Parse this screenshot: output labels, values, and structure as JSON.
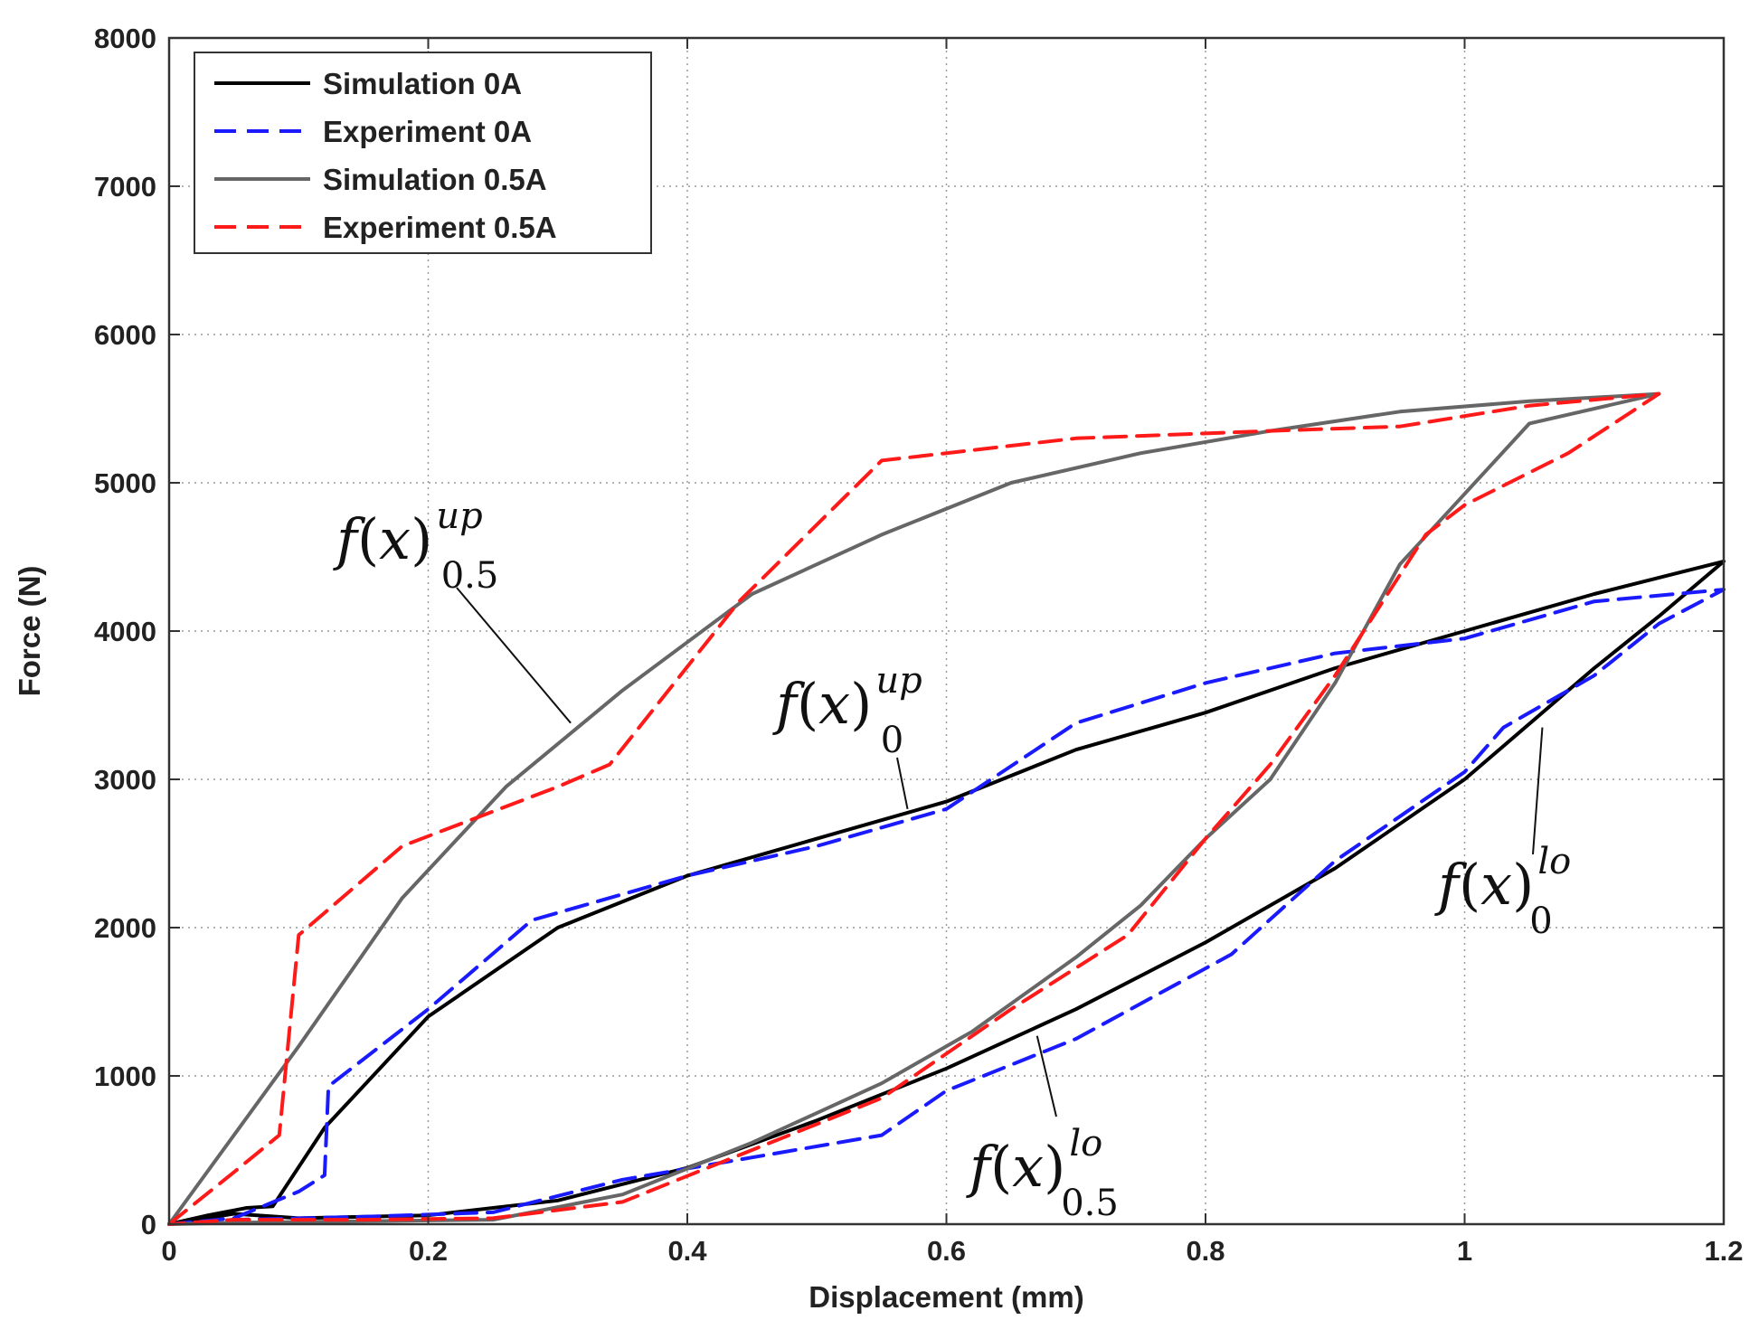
{
  "chart_data": {
    "type": "line",
    "title": "",
    "xlabel": "Displacement (mm)",
    "ylabel": "Force (N)",
    "xlim": [
      0,
      1.2
    ],
    "ylim": [
      0,
      8000
    ],
    "xticks": [
      0,
      0.2,
      0.4,
      0.6,
      0.8,
      1,
      1.2
    ],
    "xtick_labels": [
      "0",
      "0.2",
      "0.4",
      "0.6",
      "0.8",
      "1",
      "1.2"
    ],
    "yticks": [
      0,
      1000,
      2000,
      3000,
      4000,
      5000,
      6000,
      7000,
      8000
    ],
    "ytick_labels": [
      "0",
      "1000",
      "2000",
      "3000",
      "4000",
      "5000",
      "6000",
      "7000",
      "8000"
    ],
    "grid": true,
    "legend_position": "top-left",
    "series": [
      {
        "name": "Simulation 0A",
        "color": "#000000",
        "dash": "solid",
        "width": 4,
        "points": [
          [
            0,
            0
          ],
          [
            0.03,
            60
          ],
          [
            0.06,
            110
          ],
          [
            0.08,
            120
          ],
          [
            0.12,
            650
          ],
          [
            0.2,
            1400
          ],
          [
            0.3,
            2000
          ],
          [
            0.4,
            2350
          ],
          [
            0.5,
            2600
          ],
          [
            0.6,
            2850
          ],
          [
            0.7,
            3200
          ],
          [
            0.8,
            3450
          ],
          [
            0.9,
            3750
          ],
          [
            1.0,
            4000
          ],
          [
            1.1,
            4250
          ],
          [
            1.2,
            4470
          ],
          [
            1.15,
            4100
          ],
          [
            1.1,
            3750
          ],
          [
            1.0,
            3000
          ],
          [
            0.9,
            2400
          ],
          [
            0.8,
            1900
          ],
          [
            0.7,
            1450
          ],
          [
            0.6,
            1050
          ],
          [
            0.5,
            700
          ],
          [
            0.4,
            380
          ],
          [
            0.3,
            160
          ],
          [
            0.2,
            60
          ],
          [
            0.1,
            40
          ],
          [
            0.05,
            70
          ],
          [
            0,
            0
          ]
        ]
      },
      {
        "name": "Experiment 0A",
        "color": "#1a1aff",
        "dash": "dashed",
        "width": 4,
        "points": [
          [
            0,
            0
          ],
          [
            0.05,
            40
          ],
          [
            0.1,
            220
          ],
          [
            0.12,
            330
          ],
          [
            0.123,
            930
          ],
          [
            0.2,
            1450
          ],
          [
            0.28,
            2050
          ],
          [
            0.4,
            2350
          ],
          [
            0.5,
            2550
          ],
          [
            0.6,
            2800
          ],
          [
            0.7,
            3380
          ],
          [
            0.8,
            3650
          ],
          [
            0.9,
            3850
          ],
          [
            1.0,
            3950
          ],
          [
            1.1,
            4200
          ],
          [
            1.2,
            4280
          ],
          [
            1.15,
            4050
          ],
          [
            1.1,
            3700
          ],
          [
            1.03,
            3350
          ],
          [
            1.0,
            3050
          ],
          [
            0.9,
            2450
          ],
          [
            0.82,
            1820
          ],
          [
            0.7,
            1250
          ],
          [
            0.6,
            900
          ],
          [
            0.55,
            600
          ],
          [
            0.45,
            450
          ],
          [
            0.35,
            300
          ],
          [
            0.25,
            80
          ],
          [
            0.15,
            50
          ],
          [
            0.05,
            30
          ],
          [
            0,
            0
          ]
        ]
      },
      {
        "name": "Simulation 0.5A",
        "color": "#666666",
        "dash": "solid",
        "width": 4,
        "points": [
          [
            0,
            0
          ],
          [
            0.1,
            1200
          ],
          [
            0.18,
            2200
          ],
          [
            0.26,
            2950
          ],
          [
            0.35,
            3600
          ],
          [
            0.45,
            4250
          ],
          [
            0.55,
            4650
          ],
          [
            0.65,
            5000
          ],
          [
            0.75,
            5200
          ],
          [
            0.85,
            5350
          ],
          [
            0.95,
            5480
          ],
          [
            1.05,
            5550
          ],
          [
            1.15,
            5600
          ],
          [
            1.05,
            5400
          ],
          [
            0.95,
            4450
          ],
          [
            0.9,
            3650
          ],
          [
            0.85,
            3000
          ],
          [
            0.8,
            2600
          ],
          [
            0.75,
            2150
          ],
          [
            0.7,
            1800
          ],
          [
            0.62,
            1300
          ],
          [
            0.55,
            950
          ],
          [
            0.45,
            550
          ],
          [
            0.35,
            200
          ],
          [
            0.25,
            30
          ],
          [
            0.15,
            20
          ],
          [
            0.05,
            10
          ],
          [
            0,
            0
          ]
        ]
      },
      {
        "name": "Experiment 0.5A",
        "color": "#ff1a1a",
        "dash": "dashed",
        "width": 4,
        "points": [
          [
            0,
            0
          ],
          [
            0.05,
            350
          ],
          [
            0.085,
            600
          ],
          [
            0.1,
            1950
          ],
          [
            0.18,
            2550
          ],
          [
            0.3,
            2950
          ],
          [
            0.34,
            3100
          ],
          [
            0.44,
            4200
          ],
          [
            0.55,
            5150
          ],
          [
            0.7,
            5300
          ],
          [
            0.85,
            5350
          ],
          [
            0.95,
            5380
          ],
          [
            1.05,
            5520
          ],
          [
            1.15,
            5600
          ],
          [
            1.08,
            5200
          ],
          [
            1.0,
            4850
          ],
          [
            0.97,
            4650
          ],
          [
            0.9,
            3700
          ],
          [
            0.85,
            3100
          ],
          [
            0.8,
            2600
          ],
          [
            0.74,
            1950
          ],
          [
            0.65,
            1450
          ],
          [
            0.55,
            850
          ],
          [
            0.45,
            500
          ],
          [
            0.35,
            150
          ],
          [
            0.25,
            40
          ],
          [
            0.15,
            30
          ],
          [
            0.05,
            30
          ],
          [
            0,
            0
          ]
        ]
      }
    ],
    "annotations": [
      {
        "name": "f(x)-up-0.5",
        "main": "f",
        "sup": "up",
        "sub": "0.5",
        "target": [
          0.31,
          3380
        ]
      },
      {
        "name": "f(x)-up-0",
        "main": "f",
        "sup": "up",
        "sub": "0",
        "target": [
          0.57,
          2800
        ]
      },
      {
        "name": "f(x)-lo-0",
        "main": "f",
        "sup": "lo",
        "sub": "0",
        "target": [
          1.06,
          3350
        ]
      },
      {
        "name": "f(x)-lo-0.5",
        "main": "f",
        "sup": "lo",
        "sub": "0.5",
        "target": [
          0.67,
          1270
        ]
      }
    ]
  }
}
